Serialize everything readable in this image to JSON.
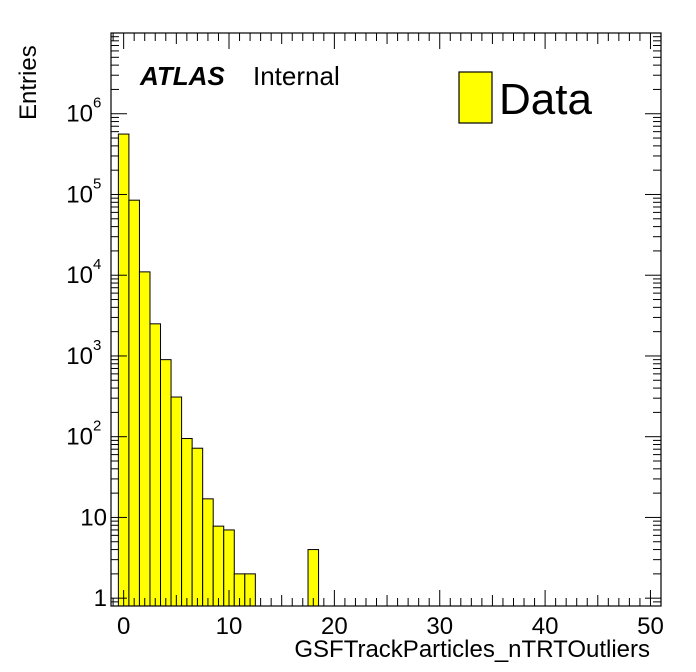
{
  "chart_data": {
    "type": "bar",
    "histogram": true,
    "bin_width": 1,
    "x": [
      0,
      1,
      2,
      3,
      4,
      5,
      6,
      7,
      8,
      9,
      10,
      11,
      12,
      13,
      14,
      15,
      16,
      17,
      18,
      19
    ],
    "values": [
      560000,
      85000,
      11000,
      2500,
      900,
      310,
      95,
      72,
      17,
      7.8,
      7,
      2,
      2,
      0,
      0,
      0,
      0,
      0,
      4,
      0
    ],
    "xlim": [
      -1.2,
      51
    ],
    "ylim": [
      0.8,
      10000000
    ],
    "y_scale": "log",
    "xlabel": "GSFTrackParticles_nTRTOutliers",
    "ylabel": "Entries",
    "x_ticks": [
      0,
      10,
      20,
      30,
      40,
      50
    ],
    "y_ticks": [
      {
        "value": 1,
        "base": "1",
        "exp": ""
      },
      {
        "value": 10,
        "base": "10",
        "exp": ""
      },
      {
        "value": 100,
        "base": "10",
        "exp": "2"
      },
      {
        "value": 1000,
        "base": "10",
        "exp": "3"
      },
      {
        "value": 10000,
        "base": "10",
        "exp": "4"
      },
      {
        "value": 100000,
        "base": "10",
        "exp": "5"
      },
      {
        "value": 1000000,
        "base": "10",
        "exp": "6"
      }
    ],
    "grid": false,
    "legend": {
      "label": "Data",
      "position": "top-right"
    },
    "colors": {
      "fill": "#ffff00",
      "edge": "#000000"
    }
  },
  "label": {
    "experiment": "ATLAS",
    "status": "Internal"
  }
}
